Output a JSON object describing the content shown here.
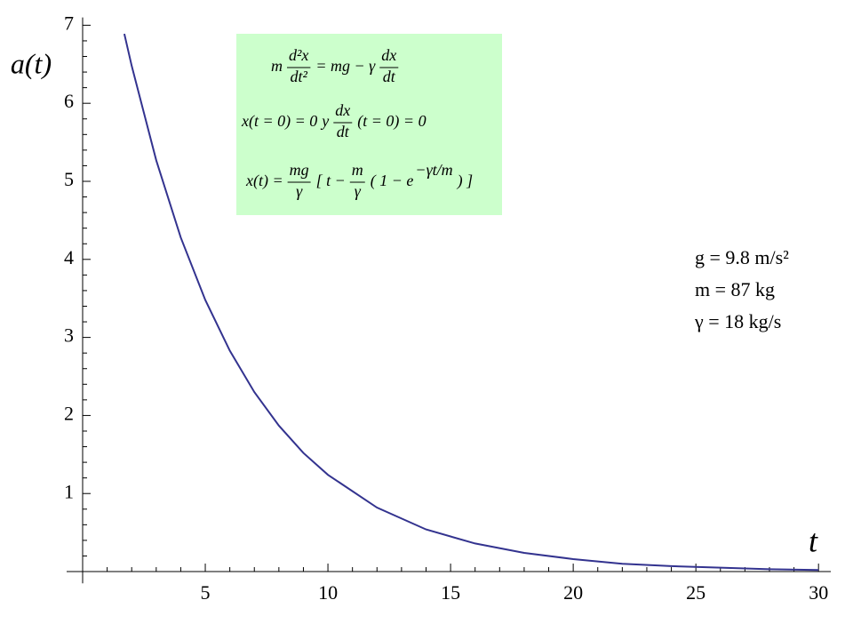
{
  "chart_data": {
    "type": "line",
    "x": [
      1.7,
      2,
      3,
      4,
      5,
      6,
      7,
      8,
      9,
      10,
      12,
      14,
      16,
      18,
      20,
      22,
      24,
      26,
      28,
      30
    ],
    "series": [
      {
        "color": "#33338f",
        "values": [
          6.89,
          6.48,
          5.27,
          4.28,
          3.48,
          2.83,
          2.3,
          1.87,
          1.52,
          1.24,
          0.82,
          0.54,
          0.36,
          0.24,
          0.16,
          0.1,
          0.07,
          0.05,
          0.03,
          0.02
        ]
      }
    ],
    "xlim": [
      0,
      30.5
    ],
    "ylim": [
      -0.15,
      7.1
    ],
    "xticks": [
      5,
      10,
      15,
      20,
      25,
      30
    ],
    "yticks": [
      1,
      2,
      3,
      4,
      5,
      6,
      7
    ],
    "x_minor_ticks": [
      1,
      2,
      3,
      4,
      6,
      7,
      8,
      9,
      11,
      12,
      13,
      14,
      16,
      17,
      18,
      19,
      21,
      22,
      23,
      24,
      26,
      27,
      28,
      29
    ],
    "y_minor_ticks": [
      0.2,
      0.4,
      0.6,
      0.8,
      1.2,
      1.4,
      1.6,
      1.8,
      2.2,
      2.4,
      2.6,
      2.8,
      3.2,
      3.4,
      3.6,
      3.8,
      4.2,
      4.4,
      4.6,
      4.8,
      5.2,
      5.4,
      5.6,
      5.8,
      6.2,
      6.4,
      6.6,
      6.8
    ],
    "ylabel": "a(t)",
    "xlabel": "t",
    "equations": [
      {
        "tokens": [
          "m",
          {
            "num": "d²x",
            "den": "dt²"
          },
          "= mg − γ",
          {
            "num": "dx",
            "den": "dt"
          }
        ]
      },
      {
        "tokens": [
          "x(t = 0) = 0",
          "y",
          {
            "num": "dx",
            "den": "dt"
          },
          "(t = 0) = 0"
        ]
      },
      {
        "tokens": [
          "x(t) =",
          {
            "num": "mg",
            "den": "γ"
          },
          "[ t −",
          {
            "num": "m",
            "den": "γ"
          },
          "( 1 − e",
          {
            "sup": "−γt/m"
          },
          ") ]"
        ]
      }
    ],
    "parameters": [
      "g = 9.8 m/s²",
      "m = 87 kg",
      "γ = 18 kg/s"
    ]
  }
}
